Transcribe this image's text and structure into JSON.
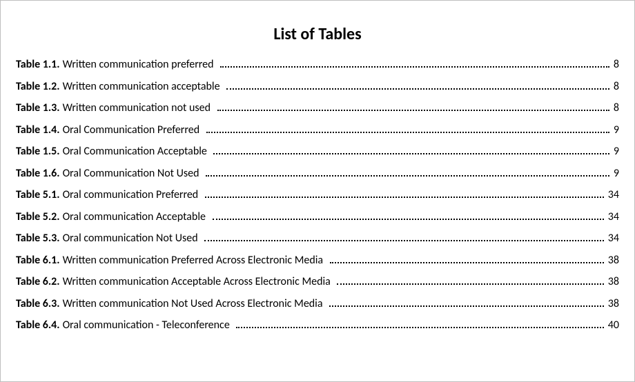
{
  "title": "List of Tables",
  "title_fontsize": 24,
  "title_weight": 700,
  "body_fontsize": 16,
  "text_color": "#000000",
  "background_color": "#ffffff",
  "leader_style": "dotted",
  "entries": [
    {
      "label": "Table 1.1.",
      "caption": "Written communication preferred",
      "page": "8"
    },
    {
      "label": "Table 1.2.",
      "caption": "Written communication acceptable",
      "page": "8"
    },
    {
      "label": "Table 1.3.",
      "caption": "Written communication not used",
      "page": "8"
    },
    {
      "label": "Table 1.4.",
      "caption": "Oral Communication Preferred",
      "page": "9"
    },
    {
      "label": "Table 1.5.",
      "caption": "Oral Communication Acceptable",
      "page": "9"
    },
    {
      "label": "Table 1.6.",
      "caption": "Oral Communication Not Used",
      "page": "9"
    },
    {
      "label": "Table 5.1.",
      "caption": "Oral communication Preferred",
      "page": "34"
    },
    {
      "label": "Table 5.2.",
      "caption": "Oral communication Acceptable",
      "page": "34"
    },
    {
      "label": "Table 5.3.",
      "caption": "Oral communication Not Used",
      "page": "34"
    },
    {
      "label": "Table 6.1.",
      "caption": "Written communication Preferred Across Electronic Media",
      "page": "38"
    },
    {
      "label": "Table 6.2.",
      "caption": "Written communication Acceptable Across Electronic Media",
      "page": "38"
    },
    {
      "label": "Table 6.3.",
      "caption": "Written communication Not Used Across Electronic Media",
      "page": "38"
    },
    {
      "label": "Table 6.4.",
      "caption": "Oral communication - Teleconference",
      "page": "40"
    }
  ]
}
